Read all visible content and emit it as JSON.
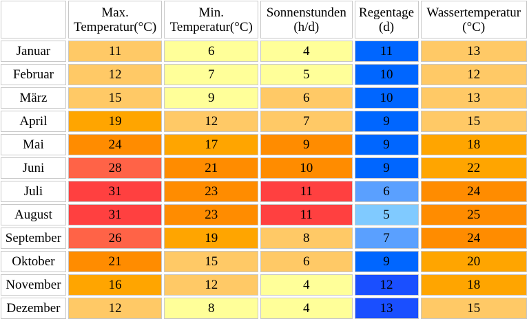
{
  "headers": {
    "max_temp": {
      "line1": "Max.",
      "line2": "Temperatur(°C)"
    },
    "min_temp": {
      "line1": "Min.",
      "line2": "Temperatur(°C)"
    },
    "sun_hours": {
      "line1": "Sonnenstunden",
      "line2": "(h/d)"
    },
    "rain_days": {
      "line1": "Regentage",
      "line2": "(d)"
    },
    "water_temp": {
      "line1": "Wassertemperatur",
      "line2": "(°C)"
    }
  },
  "rows": [
    {
      "month": "Januar",
      "max": "11",
      "min": "6",
      "sun": "4",
      "rain": "11",
      "water": "13"
    },
    {
      "month": "Februar",
      "max": "12",
      "min": "7",
      "sun": "5",
      "rain": "10",
      "water": "12"
    },
    {
      "month": "März",
      "max": "15",
      "min": "9",
      "sun": "6",
      "rain": "10",
      "water": "13"
    },
    {
      "month": "April",
      "max": "19",
      "min": "12",
      "sun": "7",
      "rain": "9",
      "water": "15"
    },
    {
      "month": "Mai",
      "max": "24",
      "min": "17",
      "sun": "9",
      "rain": "9",
      "water": "18"
    },
    {
      "month": "Juni",
      "max": "28",
      "min": "21",
      "sun": "10",
      "rain": "9",
      "water": "22"
    },
    {
      "month": "Juli",
      "max": "31",
      "min": "23",
      "sun": "11",
      "rain": "6",
      "water": "24"
    },
    {
      "month": "August",
      "max": "31",
      "min": "23",
      "sun": "11",
      "rain": "5",
      "water": "25"
    },
    {
      "month": "September",
      "max": "26",
      "min": "19",
      "sun": "8",
      "rain": "7",
      "water": "24"
    },
    {
      "month": "Oktober",
      "max": "21",
      "min": "15",
      "sun": "6",
      "rain": "9",
      "water": "20"
    },
    {
      "month": "November",
      "max": "16",
      "min": "12",
      "sun": "4",
      "rain": "12",
      "water": "18"
    },
    {
      "month": "Dezember",
      "max": "12",
      "min": "8",
      "sun": "4",
      "rain": "13",
      "water": "15"
    }
  ],
  "colors": {
    "max": [
      "#ffc966",
      "#ffc966",
      "#ffc966",
      "#ffa500",
      "#ff8c00",
      "#ff6347",
      "#ff4040",
      "#ff4040",
      "#ff6347",
      "#ff8c00",
      "#ffa500",
      "#ffc966"
    ],
    "min": [
      "#ffff99",
      "#ffff99",
      "#ffff99",
      "#ffc966",
      "#ffa500",
      "#ff8c00",
      "#ff8c00",
      "#ff8c00",
      "#ffa500",
      "#ffc966",
      "#ffc966",
      "#ffff99"
    ],
    "sun": [
      "#ffff99",
      "#ffff99",
      "#ffc966",
      "#ffc966",
      "#ff8c00",
      "#ff8c00",
      "#ff4040",
      "#ff4040",
      "#ffc966",
      "#ffc966",
      "#ffff99",
      "#ffff99"
    ],
    "rain": [
      "#0066ff",
      "#0066ff",
      "#0066ff",
      "#0066ff",
      "#0066ff",
      "#0066ff",
      "#5aa0ff",
      "#80caff",
      "#5aa0ff",
      "#0066ff",
      "#1a4fff",
      "#1a4fff"
    ],
    "water": [
      "#ffc966",
      "#ffc966",
      "#ffc966",
      "#ffc966",
      "#ffa500",
      "#ffa500",
      "#ff8c00",
      "#ff8c00",
      "#ff8c00",
      "#ffa500",
      "#ffa500",
      "#ffc966"
    ]
  }
}
